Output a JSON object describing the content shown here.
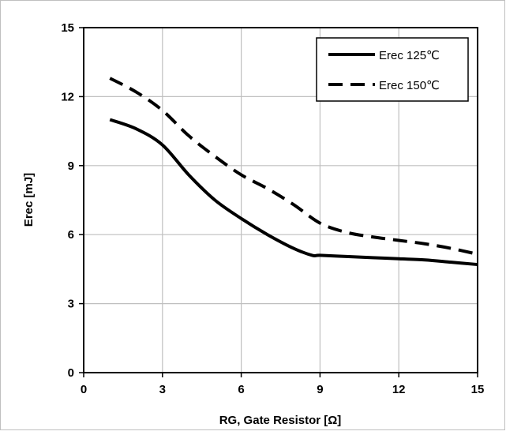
{
  "chart_data": {
    "type": "line",
    "xlabel": "RG, Gate Resistor [Ω]",
    "ylabel": "Erec [mJ]",
    "xlim": [
      0,
      15
    ],
    "ylim": [
      0,
      15
    ],
    "xticks": [
      0,
      3,
      6,
      9,
      12,
      15
    ],
    "yticks": [
      0,
      3,
      6,
      9,
      12,
      15
    ],
    "grid": true,
    "legend_position": "top-right",
    "series": [
      {
        "name": "Erec 125℃",
        "style": "solid",
        "color": "#000000",
        "x": [
          1,
          2,
          3,
          4,
          5,
          6,
          7,
          8,
          8.7,
          9,
          10,
          11,
          12,
          13,
          14,
          15
        ],
        "y": [
          11.0,
          10.6,
          9.9,
          8.6,
          7.5,
          6.7,
          6.0,
          5.4,
          5.1,
          5.1,
          5.05,
          5.0,
          4.95,
          4.9,
          4.8,
          4.7
        ]
      },
      {
        "name": "Erec 150℃",
        "style": "dashed",
        "color": "#000000",
        "x": [
          1,
          2,
          3,
          4,
          5,
          6,
          7,
          8,
          9,
          10,
          11,
          12,
          13,
          14,
          15
        ],
        "y": [
          12.8,
          12.2,
          11.4,
          10.3,
          9.4,
          8.6,
          8.0,
          7.3,
          6.5,
          6.1,
          5.9,
          5.75,
          5.6,
          5.4,
          5.15
        ]
      }
    ]
  }
}
